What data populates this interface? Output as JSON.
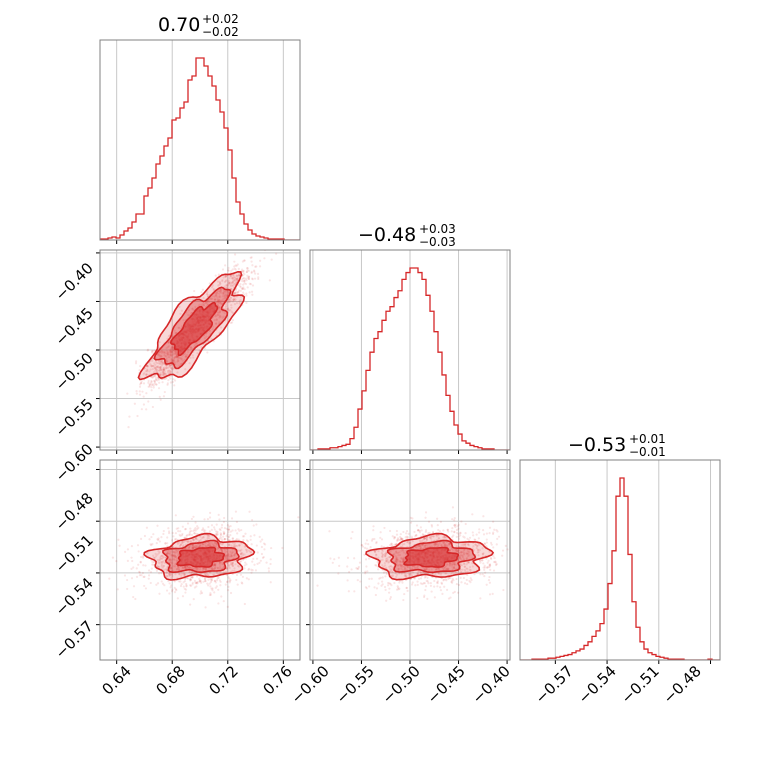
{
  "chart_data": {
    "type": "corner",
    "color": "#d62728",
    "grid": true,
    "titles": [
      {
        "main": "0.70",
        "plus": "+0.02",
        "minus": "−0.02"
      },
      {
        "main": "−0.48",
        "plus": "+0.03",
        "minus": "−0.03"
      },
      {
        "main": "−0.53",
        "plus": "+0.01",
        "minus": "−0.01"
      }
    ],
    "parameters": [
      {
        "index": 0,
        "range": [
          0.628,
          0.772
        ],
        "ticks": [
          0.64,
          0.68,
          0.72,
          0.76
        ],
        "tick_labels": [
          "0.64",
          "0.68",
          "0.72",
          "0.76"
        ]
      },
      {
        "index": 1,
        "range": [
          -0.603,
          -0.397
        ],
        "ticks": [
          -0.6,
          -0.55,
          -0.5,
          -0.45,
          -0.4
        ],
        "tick_labels": [
          "−0.60",
          "−0.55",
          "−0.50",
          "−0.45",
          "−0.40"
        ]
      },
      {
        "index": 2,
        "range": [
          -0.5905,
          -0.4745
        ],
        "ticks": [
          -0.57,
          -0.54,
          -0.51,
          -0.48
        ],
        "tick_labels": [
          "−0.57",
          "−0.54",
          "−0.51",
          "−0.48"
        ]
      }
    ],
    "histograms": [
      {
        "param": 0,
        "bin_edges_range": [
          0.628,
          0.772
        ],
        "counts": [
          0.5,
          0.5,
          1,
          1.5,
          1,
          2.5,
          4.5,
          6,
          9,
          13,
          13,
          22,
          26,
          31,
          38,
          42,
          47,
          51,
          60,
          61,
          66,
          69,
          80,
          82,
          91,
          91,
          87,
          82,
          77,
          70,
          64,
          56,
          45,
          31,
          19,
          13,
          8,
          5,
          3,
          2,
          1.5,
          1,
          0.5,
          0.5,
          0.5,
          0.5,
          0,
          0,
          0,
          0
        ]
      },
      {
        "param": 1,
        "bin_edges_range": [
          -0.603,
          -0.397
        ],
        "counts": [
          0,
          0,
          0.5,
          0.5,
          0.5,
          1,
          1,
          1.5,
          2,
          2.5,
          5,
          10,
          18,
          26,
          35,
          43,
          49,
          52,
          57,
          61,
          63,
          67,
          70,
          75,
          78,
          80,
          80,
          78,
          75,
          68,
          61,
          52,
          43,
          33,
          24,
          17,
          11,
          7,
          4,
          3,
          2,
          1.5,
          1,
          0.5,
          0.5,
          0.5,
          0,
          0,
          0,
          0
        ]
      },
      {
        "param": 2,
        "bin_edges_range": [
          -0.5905,
          -0.4745
        ],
        "counts": [
          0,
          0,
          0,
          0.5,
          0.5,
          0.5,
          0.5,
          1,
          1,
          1.5,
          2,
          2.5,
          3,
          4,
          5,
          6,
          8,
          10,
          13,
          16,
          20,
          28,
          42,
          60,
          90,
          100,
          90,
          58,
          32,
          18,
          10,
          6,
          4,
          3,
          2,
          1.5,
          1,
          0.5,
          0.5,
          0.5,
          0.5,
          0,
          0,
          0,
          0,
          0,
          0,
          0.5,
          0,
          0
        ]
      }
    ],
    "pairs": [
      {
        "x_param": 0,
        "y_param": 1,
        "mean": [
          0.7,
          -0.478
        ],
        "sd": [
          0.017,
          0.027
        ],
        "correlation": 0.92,
        "blob": [
          [
            0.664,
            -0.53
          ],
          [
            0.7,
            -0.478
          ],
          [
            0.732,
            -0.419
          ]
        ]
      },
      {
        "x_param": 0,
        "y_param": 2,
        "mean": [
          0.7,
          -0.531
        ],
        "sd": [
          0.017,
          0.0075
        ],
        "correlation": 0.15
      },
      {
        "x_param": 1,
        "y_param": 2,
        "mean": [
          -0.479,
          -0.531
        ],
        "sd": [
          0.028,
          0.0075
        ],
        "correlation": 0.12
      }
    ],
    "contour_levels": [
      0.12,
      0.3,
      0.55
    ]
  }
}
